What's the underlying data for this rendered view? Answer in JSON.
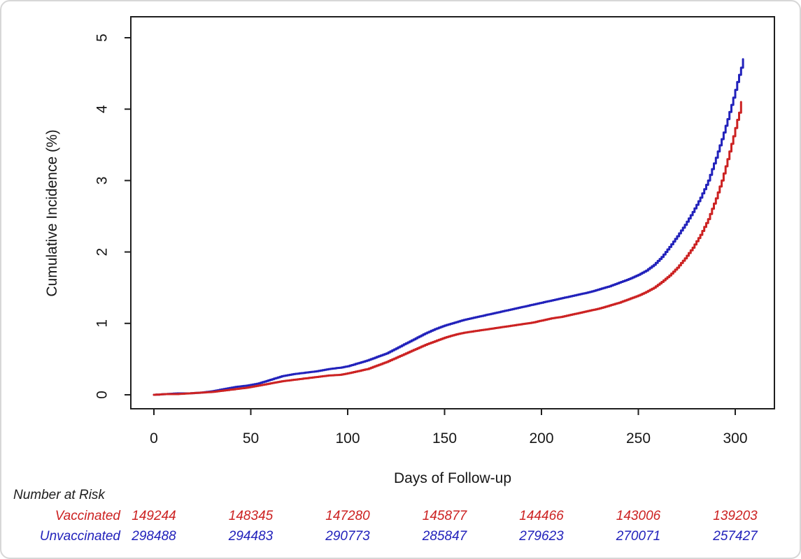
{
  "figure": {
    "background": "#ffffff",
    "card_border_color": "#d7d7d7",
    "axis_color": "#1f1f1f",
    "text_color": "#161616"
  },
  "chart_data": {
    "type": "line",
    "curve_style": "step",
    "title": "",
    "xlabel": "Days of Follow-up",
    "ylabel": "Cumulative Incidence (%)",
    "xlim": [
      -12,
      320
    ],
    "ylim": [
      -0.2,
      5.3
    ],
    "x_ticks": [
      0,
      50,
      100,
      150,
      200,
      250,
      300
    ],
    "y_ticks": [
      0,
      1,
      2,
      3,
      4,
      5
    ],
    "grid": false,
    "legend_position": "none",
    "series": [
      {
        "name": "Vaccinated",
        "color": "#cc2222",
        "points": [
          [
            0,
            0
          ],
          [
            6,
            0.01
          ],
          [
            12,
            0.01
          ],
          [
            18,
            0.02
          ],
          [
            24,
            0.03
          ],
          [
            30,
            0.04
          ],
          [
            36,
            0.06
          ],
          [
            42,
            0.08
          ],
          [
            48,
            0.1
          ],
          [
            54,
            0.13
          ],
          [
            60,
            0.16
          ],
          [
            66,
            0.19
          ],
          [
            72,
            0.21
          ],
          [
            78,
            0.23
          ],
          [
            84,
            0.25
          ],
          [
            90,
            0.27
          ],
          [
            96,
            0.28
          ],
          [
            100,
            0.3
          ],
          [
            105,
            0.33
          ],
          [
            110,
            0.36
          ],
          [
            115,
            0.41
          ],
          [
            120,
            0.46
          ],
          [
            125,
            0.52
          ],
          [
            130,
            0.58
          ],
          [
            135,
            0.64
          ],
          [
            140,
            0.7
          ],
          [
            145,
            0.75
          ],
          [
            150,
            0.8
          ],
          [
            155,
            0.84
          ],
          [
            160,
            0.87
          ],
          [
            165,
            0.89
          ],
          [
            170,
            0.91
          ],
          [
            175,
            0.93
          ],
          [
            180,
            0.95
          ],
          [
            185,
            0.97
          ],
          [
            190,
            0.99
          ],
          [
            195,
            1.01
          ],
          [
            200,
            1.04
          ],
          [
            205,
            1.07
          ],
          [
            210,
            1.09
          ],
          [
            215,
            1.12
          ],
          [
            220,
            1.15
          ],
          [
            225,
            1.18
          ],
          [
            230,
            1.21
          ],
          [
            235,
            1.25
          ],
          [
            240,
            1.29
          ],
          [
            245,
            1.34
          ],
          [
            250,
            1.39
          ],
          [
            254,
            1.44
          ],
          [
            258,
            1.5
          ],
          [
            262,
            1.58
          ],
          [
            266,
            1.67
          ],
          [
            270,
            1.78
          ],
          [
            274,
            1.91
          ],
          [
            278,
            2.06
          ],
          [
            282,
            2.24
          ],
          [
            286,
            2.46
          ],
          [
            290,
            2.75
          ],
          [
            293,
            3.0
          ],
          [
            296,
            3.3
          ],
          [
            299,
            3.62
          ],
          [
            301,
            3.85
          ],
          [
            302,
            3.95
          ],
          [
            303,
            4.1
          ]
        ]
      },
      {
        "name": "Unvaccinated",
        "color": "#2222bb",
        "points": [
          [
            0,
            0
          ],
          [
            6,
            0.01
          ],
          [
            12,
            0.02
          ],
          [
            18,
            0.02
          ],
          [
            24,
            0.03
          ],
          [
            30,
            0.05
          ],
          [
            36,
            0.08
          ],
          [
            42,
            0.11
          ],
          [
            48,
            0.13
          ],
          [
            54,
            0.16
          ],
          [
            60,
            0.21
          ],
          [
            66,
            0.26
          ],
          [
            72,
            0.29
          ],
          [
            78,
            0.31
          ],
          [
            84,
            0.33
          ],
          [
            90,
            0.36
          ],
          [
            96,
            0.38
          ],
          [
            100,
            0.4
          ],
          [
            105,
            0.44
          ],
          [
            110,
            0.48
          ],
          [
            115,
            0.53
          ],
          [
            120,
            0.58
          ],
          [
            125,
            0.65
          ],
          [
            130,
            0.72
          ],
          [
            135,
            0.79
          ],
          [
            140,
            0.86
          ],
          [
            145,
            0.92
          ],
          [
            150,
            0.97
          ],
          [
            155,
            1.01
          ],
          [
            160,
            1.05
          ],
          [
            165,
            1.08
          ],
          [
            170,
            1.11
          ],
          [
            175,
            1.14
          ],
          [
            180,
            1.17
          ],
          [
            185,
            1.2
          ],
          [
            190,
            1.23
          ],
          [
            195,
            1.26
          ],
          [
            200,
            1.29
          ],
          [
            205,
            1.32
          ],
          [
            210,
            1.35
          ],
          [
            215,
            1.38
          ],
          [
            220,
            1.41
          ],
          [
            225,
            1.44
          ],
          [
            230,
            1.48
          ],
          [
            235,
            1.52
          ],
          [
            240,
            1.57
          ],
          [
            245,
            1.62
          ],
          [
            250,
            1.68
          ],
          [
            254,
            1.74
          ],
          [
            258,
            1.82
          ],
          [
            262,
            1.93
          ],
          [
            266,
            2.07
          ],
          [
            270,
            2.22
          ],
          [
            274,
            2.38
          ],
          [
            278,
            2.56
          ],
          [
            282,
            2.76
          ],
          [
            286,
            3.0
          ],
          [
            290,
            3.32
          ],
          [
            293,
            3.58
          ],
          [
            296,
            3.86
          ],
          [
            299,
            4.16
          ],
          [
            301,
            4.38
          ],
          [
            303,
            4.58
          ],
          [
            304,
            4.7
          ]
        ]
      }
    ]
  },
  "risk_table": {
    "title": "Number at Risk",
    "days": [
      0,
      50,
      100,
      150,
      200,
      250,
      300
    ],
    "rows": [
      {
        "label": "Vaccinated",
        "color": "#cc2222",
        "values": [
          "149244",
          "148345",
          "147280",
          "145877",
          "144466",
          "143006",
          "139203"
        ]
      },
      {
        "label": "Unvaccinated",
        "color": "#2222bb",
        "values": [
          "298488",
          "294483",
          "290773",
          "285847",
          "279623",
          "270071",
          "257427"
        ]
      }
    ]
  }
}
